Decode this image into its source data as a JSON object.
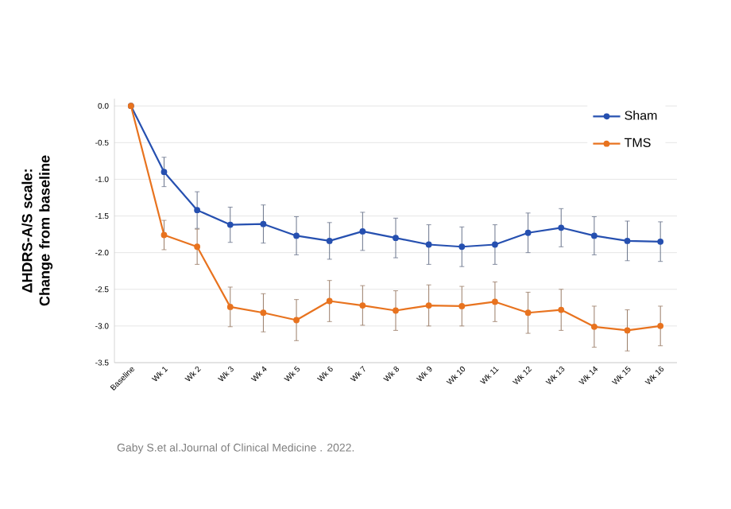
{
  "chart_data": {
    "type": "line",
    "ylabel": "ΔHDRS-A/S scale: Change from baseline",
    "categories": [
      "Baseline",
      "Wk 1",
      "Wk 2",
      "Wk 3",
      "Wk 4",
      "Wk 5",
      "Wk 6",
      "Wk 7",
      "Wk 8",
      "Wk 9",
      "Wk 10",
      "Wk 11",
      "Wk 12",
      "Wk 13",
      "Wk 14",
      "Wk 15",
      "Wk 16"
    ],
    "series": [
      {
        "name": "Sham",
        "color": "#2650b0",
        "values": [
          0,
          -0.9,
          -1.42,
          -1.62,
          -1.61,
          -1.77,
          -1.84,
          -1.71,
          -1.8,
          -1.89,
          -1.92,
          -1.89,
          -1.73,
          -1.66,
          -1.77,
          -1.84,
          -1.85
        ],
        "errors": [
          null,
          0.2,
          0.25,
          0.24,
          0.26,
          0.26,
          0.25,
          0.26,
          0.27,
          0.27,
          0.27,
          0.27,
          0.27,
          0.26,
          0.26,
          0.27,
          0.27
        ]
      },
      {
        "name": "TMS",
        "color": "#e8731f",
        "values": [
          0,
          -1.76,
          -1.92,
          -2.74,
          -2.82,
          -2.92,
          -2.66,
          -2.72,
          -2.79,
          -2.72,
          -2.73,
          -2.67,
          -2.82,
          -2.78,
          -3.01,
          -3.06,
          -3.0
        ],
        "errors": [
          null,
          0.2,
          0.24,
          0.27,
          0.26,
          0.28,
          0.28,
          0.27,
          0.27,
          0.28,
          0.27,
          0.27,
          0.28,
          0.28,
          0.28,
          0.28,
          0.27
        ]
      }
    ],
    "ylim": [
      -3.5,
      0.1
    ],
    "yticks": [
      {
        "value": 0,
        "label": "0.0"
      },
      -0.5,
      {
        "value": -1,
        "label": "-1.0"
      },
      -1.5,
      {
        "value": -2,
        "label": "-2.0"
      },
      -2.5,
      {
        "value": -3,
        "label": "-3.0"
      },
      -3.5
    ],
    "grid": "y",
    "legend": "top right",
    "marker": "circle",
    "line_style": "solid",
    "annotations": [
      "Gaby S.et al.Journal of Clinical Medicine . 2022."
    ]
  }
}
